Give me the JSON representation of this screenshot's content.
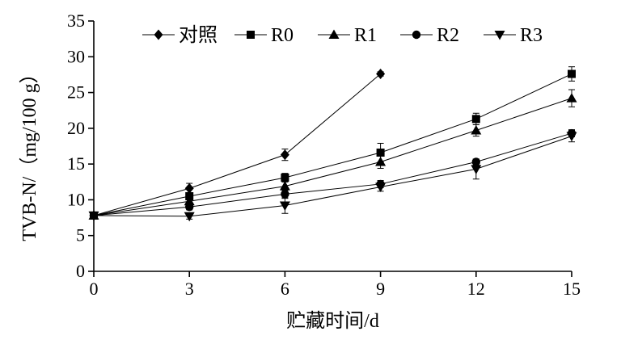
{
  "chart_data": {
    "type": "line",
    "xlabel": "贮藏时间/d",
    "ylabel": "TVB-N/（mg/100 g）",
    "x_ticks": [
      0,
      3,
      6,
      9,
      12,
      15
    ],
    "y_ticks": [
      0,
      5,
      10,
      15,
      20,
      25,
      30,
      35
    ],
    "xlim": [
      0,
      15
    ],
    "ylim": [
      0,
      35
    ],
    "grid": false,
    "legend_position": "top",
    "series": [
      {
        "name": "对照",
        "marker": "diamond",
        "x": [
          0,
          3,
          6,
          9
        ],
        "y": [
          7.8,
          11.6,
          16.3,
          27.6
        ],
        "err": [
          0.3,
          0.7,
          0.8,
          0.3
        ]
      },
      {
        "name": "R0",
        "marker": "square",
        "x": [
          0,
          3,
          6,
          9,
          12,
          15
        ],
        "y": [
          7.8,
          10.5,
          13.1,
          16.6,
          21.3,
          27.6
        ],
        "err": [
          0.3,
          0.5,
          0.6,
          1.3,
          0.8,
          1.0
        ]
      },
      {
        "name": "R1",
        "marker": "triangle-up",
        "x": [
          0,
          3,
          6,
          9,
          12,
          15
        ],
        "y": [
          7.8,
          9.8,
          11.9,
          15.3,
          19.7,
          24.2
        ],
        "err": [
          0.3,
          0.5,
          0.6,
          0.9,
          0.8,
          1.2
        ]
      },
      {
        "name": "R2",
        "marker": "circle",
        "x": [
          0,
          3,
          6,
          9,
          12,
          15
        ],
        "y": [
          7.8,
          9.0,
          10.8,
          12.2,
          15.3,
          19.3
        ],
        "err": [
          0.3,
          0.4,
          0.6,
          0.5,
          0.4,
          0.5
        ]
      },
      {
        "name": "R3",
        "marker": "triangle-down",
        "x": [
          0,
          3,
          6,
          9,
          12,
          15
        ],
        "y": [
          7.8,
          7.7,
          9.2,
          11.8,
          14.3,
          18.9
        ],
        "err": [
          0.3,
          0.4,
          1.1,
          0.6,
          1.4,
          0.8
        ]
      }
    ]
  }
}
